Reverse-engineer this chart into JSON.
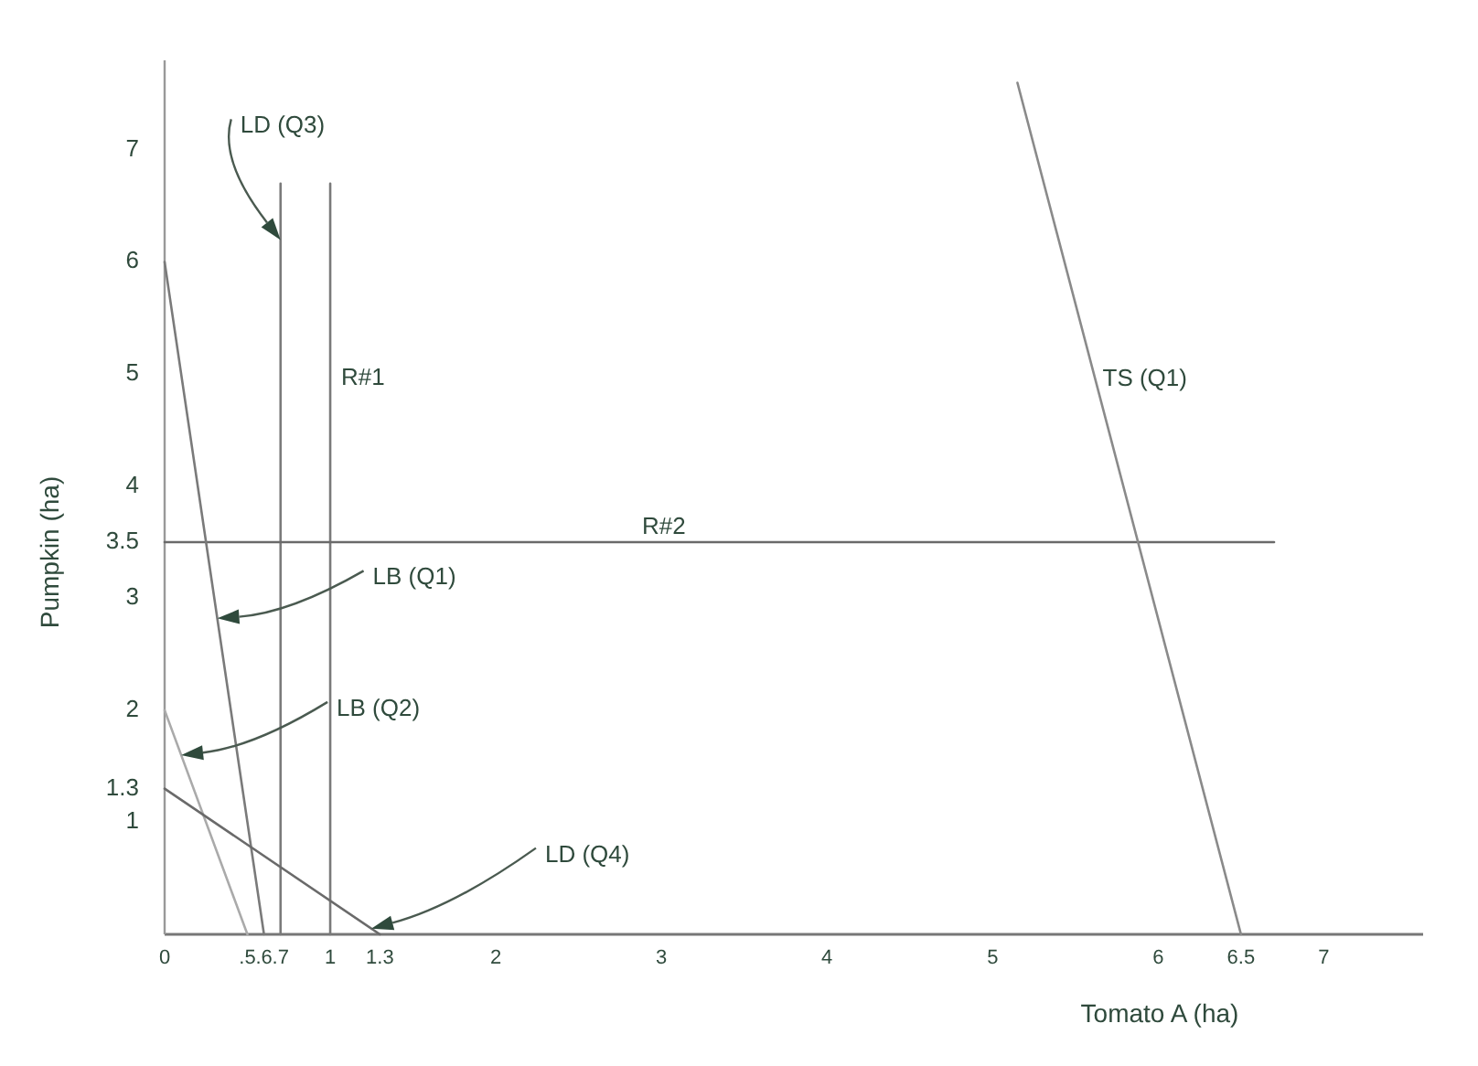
{
  "chart_data": {
    "type": "line",
    "xlabel": "Tomato A (ha)",
    "ylabel": "Pumpkin (ha)",
    "xlim": [
      0,
      7.6
    ],
    "ylim": [
      0,
      7.8
    ],
    "xticks": [
      0,
      {
        "value": 0.5,
        "label": ".5"
      },
      {
        "value": 0.6,
        "label": ".6"
      },
      {
        "value": 0.7,
        "label": ".7"
      },
      1,
      1.3,
      2,
      3,
      4,
      5,
      6,
      6.5,
      7
    ],
    "yticks": [
      1,
      1.3,
      2,
      3,
      3.5,
      4,
      5,
      6,
      7
    ],
    "grid": false,
    "marker": "none",
    "line_style": "solid",
    "series": [
      {
        "name": "LD (Q3)",
        "color": "#7a7a7a",
        "x": [
          0.7,
          0.7
        ],
        "values": [
          0,
          6.7
        ]
      },
      {
        "name": "R#1",
        "color": "#7a7a7a",
        "x": [
          1,
          1
        ],
        "values": [
          0,
          6.7
        ]
      },
      {
        "name": "R#2",
        "color": "#6a6a6a",
        "x": [
          0,
          6.7
        ],
        "values": [
          3.5,
          3.5
        ]
      },
      {
        "name": "TS (Q1)",
        "color": "#8a8a8a",
        "x": [
          5.15,
          6.5
        ],
        "values": [
          7.6,
          0
        ]
      },
      {
        "name": "LB (Q1)",
        "color": "#7a7a7a",
        "x": [
          0,
          0.6
        ],
        "values": [
          6,
          0
        ]
      },
      {
        "name": "LB (Q2)",
        "color": "#aaaaaa",
        "x": [
          0,
          0.5
        ],
        "values": [
          2,
          0
        ]
      },
      {
        "name": "LD (Q4)",
        "color": "#6a6a6a",
        "x": [
          0,
          1.3
        ],
        "values": [
          1.3,
          0
        ]
      }
    ]
  }
}
